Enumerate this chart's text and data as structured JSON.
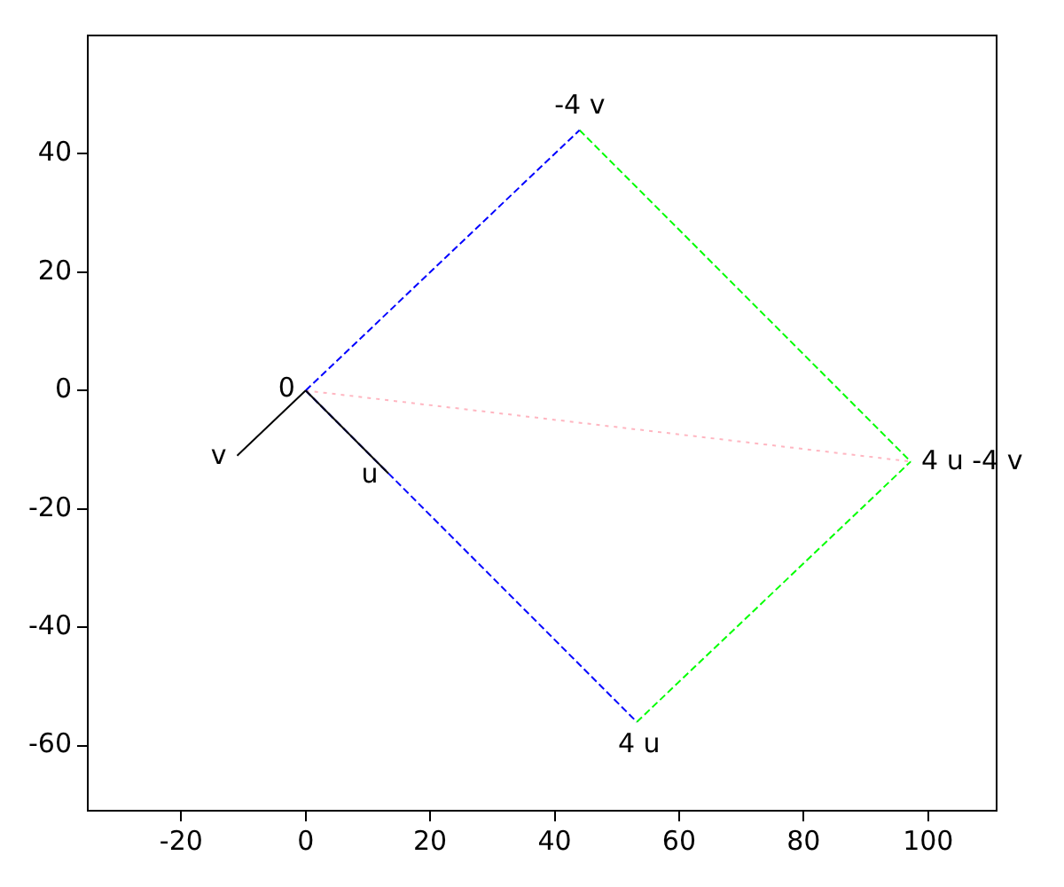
{
  "chart_data": {
    "type": "line",
    "xlim": [
      -35,
      111
    ],
    "ylim": [
      -71,
      60
    ],
    "xticks": [
      -20,
      0,
      20,
      40,
      60,
      80,
      100
    ],
    "yticks": [
      -60,
      -40,
      -20,
      0,
      20,
      40
    ],
    "grid": false,
    "legend": false,
    "marker": "none",
    "series": [
      {
        "color": "#000000",
        "line_style": "solid",
        "x": [
          0,
          13.3
        ],
        "values": [
          0,
          -14
        ]
      },
      {
        "color": "#000000",
        "line_style": "solid",
        "x": [
          0,
          -11
        ],
        "values": [
          0,
          -11
        ]
      },
      {
        "color": "#0000ff",
        "line_style": "dashed",
        "x": [
          0,
          44
        ],
        "values": [
          0,
          44
        ]
      },
      {
        "color": "#0000ff",
        "line_style": "dashed",
        "x": [
          0,
          53.2
        ],
        "values": [
          0,
          -56
        ]
      },
      {
        "color": "#00ff00",
        "line_style": "dashed",
        "x": [
          44,
          97.2
        ],
        "values": [
          44,
          -12
        ]
      },
      {
        "color": "#00ff00",
        "line_style": "dashed",
        "x": [
          53.2,
          97.2
        ],
        "values": [
          -56,
          -12
        ]
      },
      {
        "color": "#ffb6c1",
        "line_style": "dotted",
        "x": [
          0,
          97.2
        ],
        "values": [
          0,
          -12
        ]
      }
    ],
    "annotations": [
      {
        "text": "0",
        "x": 0,
        "y": 0
      },
      {
        "text": "u",
        "x": 13.3,
        "y": -14
      },
      {
        "text": "v",
        "x": -11,
        "y": -11
      },
      {
        "text": "-4 v",
        "x": 44,
        "y": 44
      },
      {
        "text": "4 u",
        "x": 53.2,
        "y": -56
      },
      {
        "text": "4 u -4 v",
        "x": 97.2,
        "y": -12
      }
    ]
  }
}
